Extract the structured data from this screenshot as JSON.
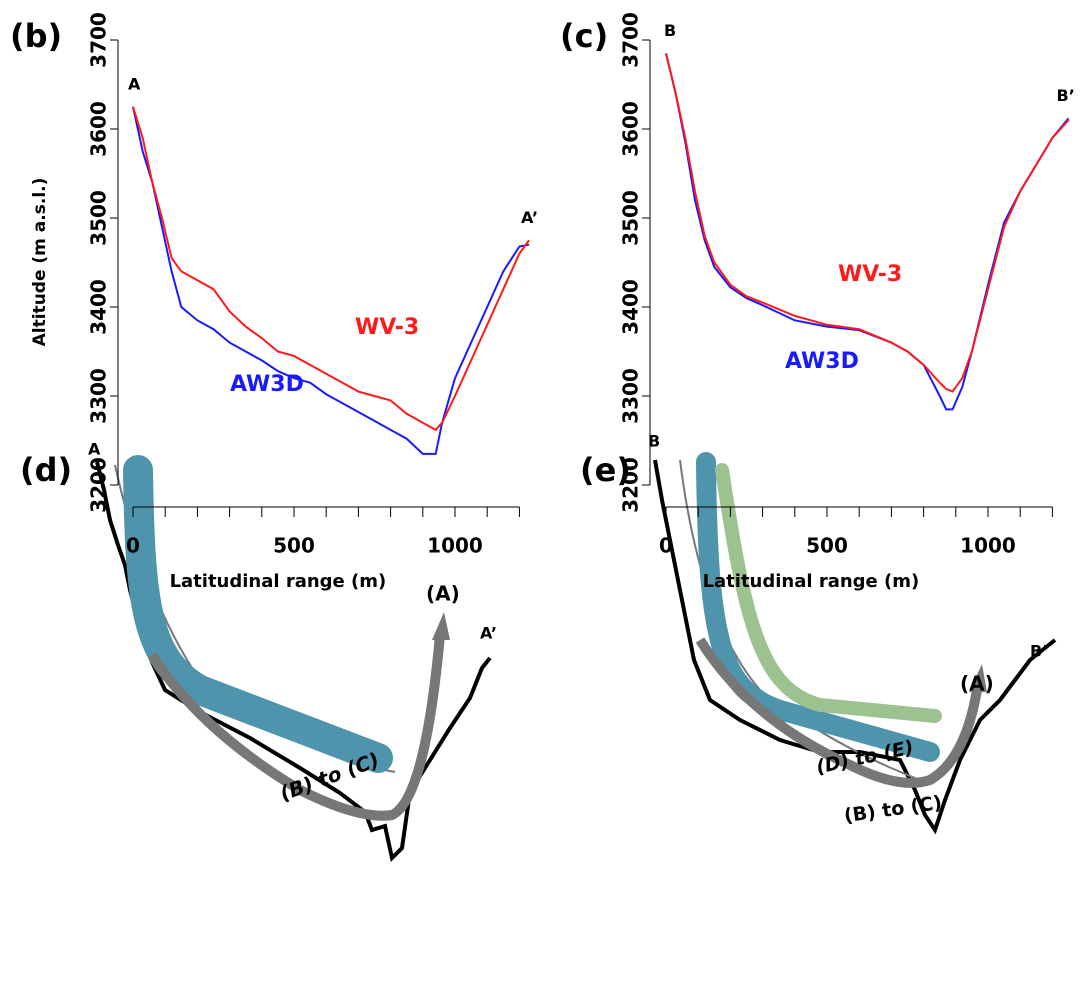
{
  "chart_data": [
    {
      "type": "line",
      "panel": "(b)",
      "x_label": "Latitudinal range (m)",
      "y_label": "Altitude (m a.s.l.)",
      "start_label": "A",
      "end_label": "A’",
      "xlim": [
        0,
        1250
      ],
      "ylim": [
        3200,
        3700
      ],
      "xticks": [
        0,
        500,
        1000
      ],
      "xminorticks": [
        100,
        200,
        300,
        400,
        600,
        700,
        800,
        900,
        1100,
        1200
      ],
      "yticks": [
        3200,
        3300,
        3400,
        3500,
        3600,
        3700
      ],
      "x": [
        0,
        30,
        60,
        90,
        120,
        150,
        200,
        250,
        300,
        350,
        400,
        450,
        500,
        550,
        600,
        650,
        700,
        750,
        800,
        850,
        900,
        940,
        960,
        1000,
        1050,
        1100,
        1150,
        1200,
        1230
      ],
      "series": [
        {
          "name": "AW3D",
          "color": "#1a1aff",
          "values": [
            3625,
            3575,
            3540,
            3490,
            3440,
            3400,
            3385,
            3375,
            3360,
            3350,
            3340,
            3328,
            3320,
            3315,
            3302,
            3292,
            3282,
            3272,
            3262,
            3252,
            3235,
            3235,
            3270,
            3320,
            3360,
            3400,
            3440,
            3468,
            3470
          ]
        },
        {
          "name": "WV-3",
          "color": "#ff1a1a",
          "values": [
            3625,
            3590,
            3540,
            3500,
            3455,
            3440,
            3430,
            3420,
            3395,
            3378,
            3365,
            3350,
            3345,
            3335,
            3325,
            3315,
            3305,
            3300,
            3295,
            3280,
            3270,
            3262,
            3270,
            3300,
            3340,
            3380,
            3420,
            3460,
            3475
          ]
        }
      ]
    },
    {
      "type": "line",
      "panel": "(c)",
      "x_label": "Latitudinal range (m)",
      "start_label": "B",
      "end_label": "B’",
      "xlim": [
        0,
        1250
      ],
      "ylim": [
        3200,
        3700
      ],
      "xticks": [
        0,
        500,
        1000
      ],
      "xminorticks": [
        100,
        200,
        300,
        400,
        600,
        700,
        800,
        900,
        1100,
        1200
      ],
      "yticks": [
        3200,
        3300,
        3400,
        3500,
        3600,
        3700
      ],
      "x": [
        0,
        30,
        60,
        90,
        120,
        150,
        200,
        250,
        300,
        400,
        500,
        600,
        700,
        750,
        800,
        850,
        870,
        890,
        920,
        950,
        1000,
        1050,
        1100,
        1150,
        1200,
        1250
      ],
      "series": [
        {
          "name": "AW3D",
          "color": "#1a1aff",
          "values": [
            3685,
            3640,
            3585,
            3520,
            3475,
            3445,
            3422,
            3410,
            3402,
            3385,
            3378,
            3374,
            3360,
            3350,
            3335,
            3300,
            3285,
            3285,
            3310,
            3350,
            3425,
            3495,
            3530,
            3560,
            3590,
            3612
          ]
        },
        {
          "name": "WV-3",
          "color": "#ff1a1a",
          "values": [
            3685,
            3640,
            3590,
            3530,
            3480,
            3450,
            3425,
            3412,
            3405,
            3390,
            3380,
            3375,
            3360,
            3350,
            3335,
            3315,
            3308,
            3305,
            3320,
            3350,
            3420,
            3490,
            3530,
            3560,
            3590,
            3610
          ]
        }
      ]
    }
  ],
  "diagrams": [
    {
      "panel": "(d)",
      "start_label": "A",
      "end_label": "A’",
      "arrow_label": "(A)",
      "band_labels": [
        "(B) to (C)"
      ]
    },
    {
      "panel": "(e)",
      "start_label": "B",
      "end_label": "B’",
      "arrow_label": "(A)",
      "band_labels": [
        "(D) to (E)",
        "(B) to (C)"
      ]
    }
  ]
}
